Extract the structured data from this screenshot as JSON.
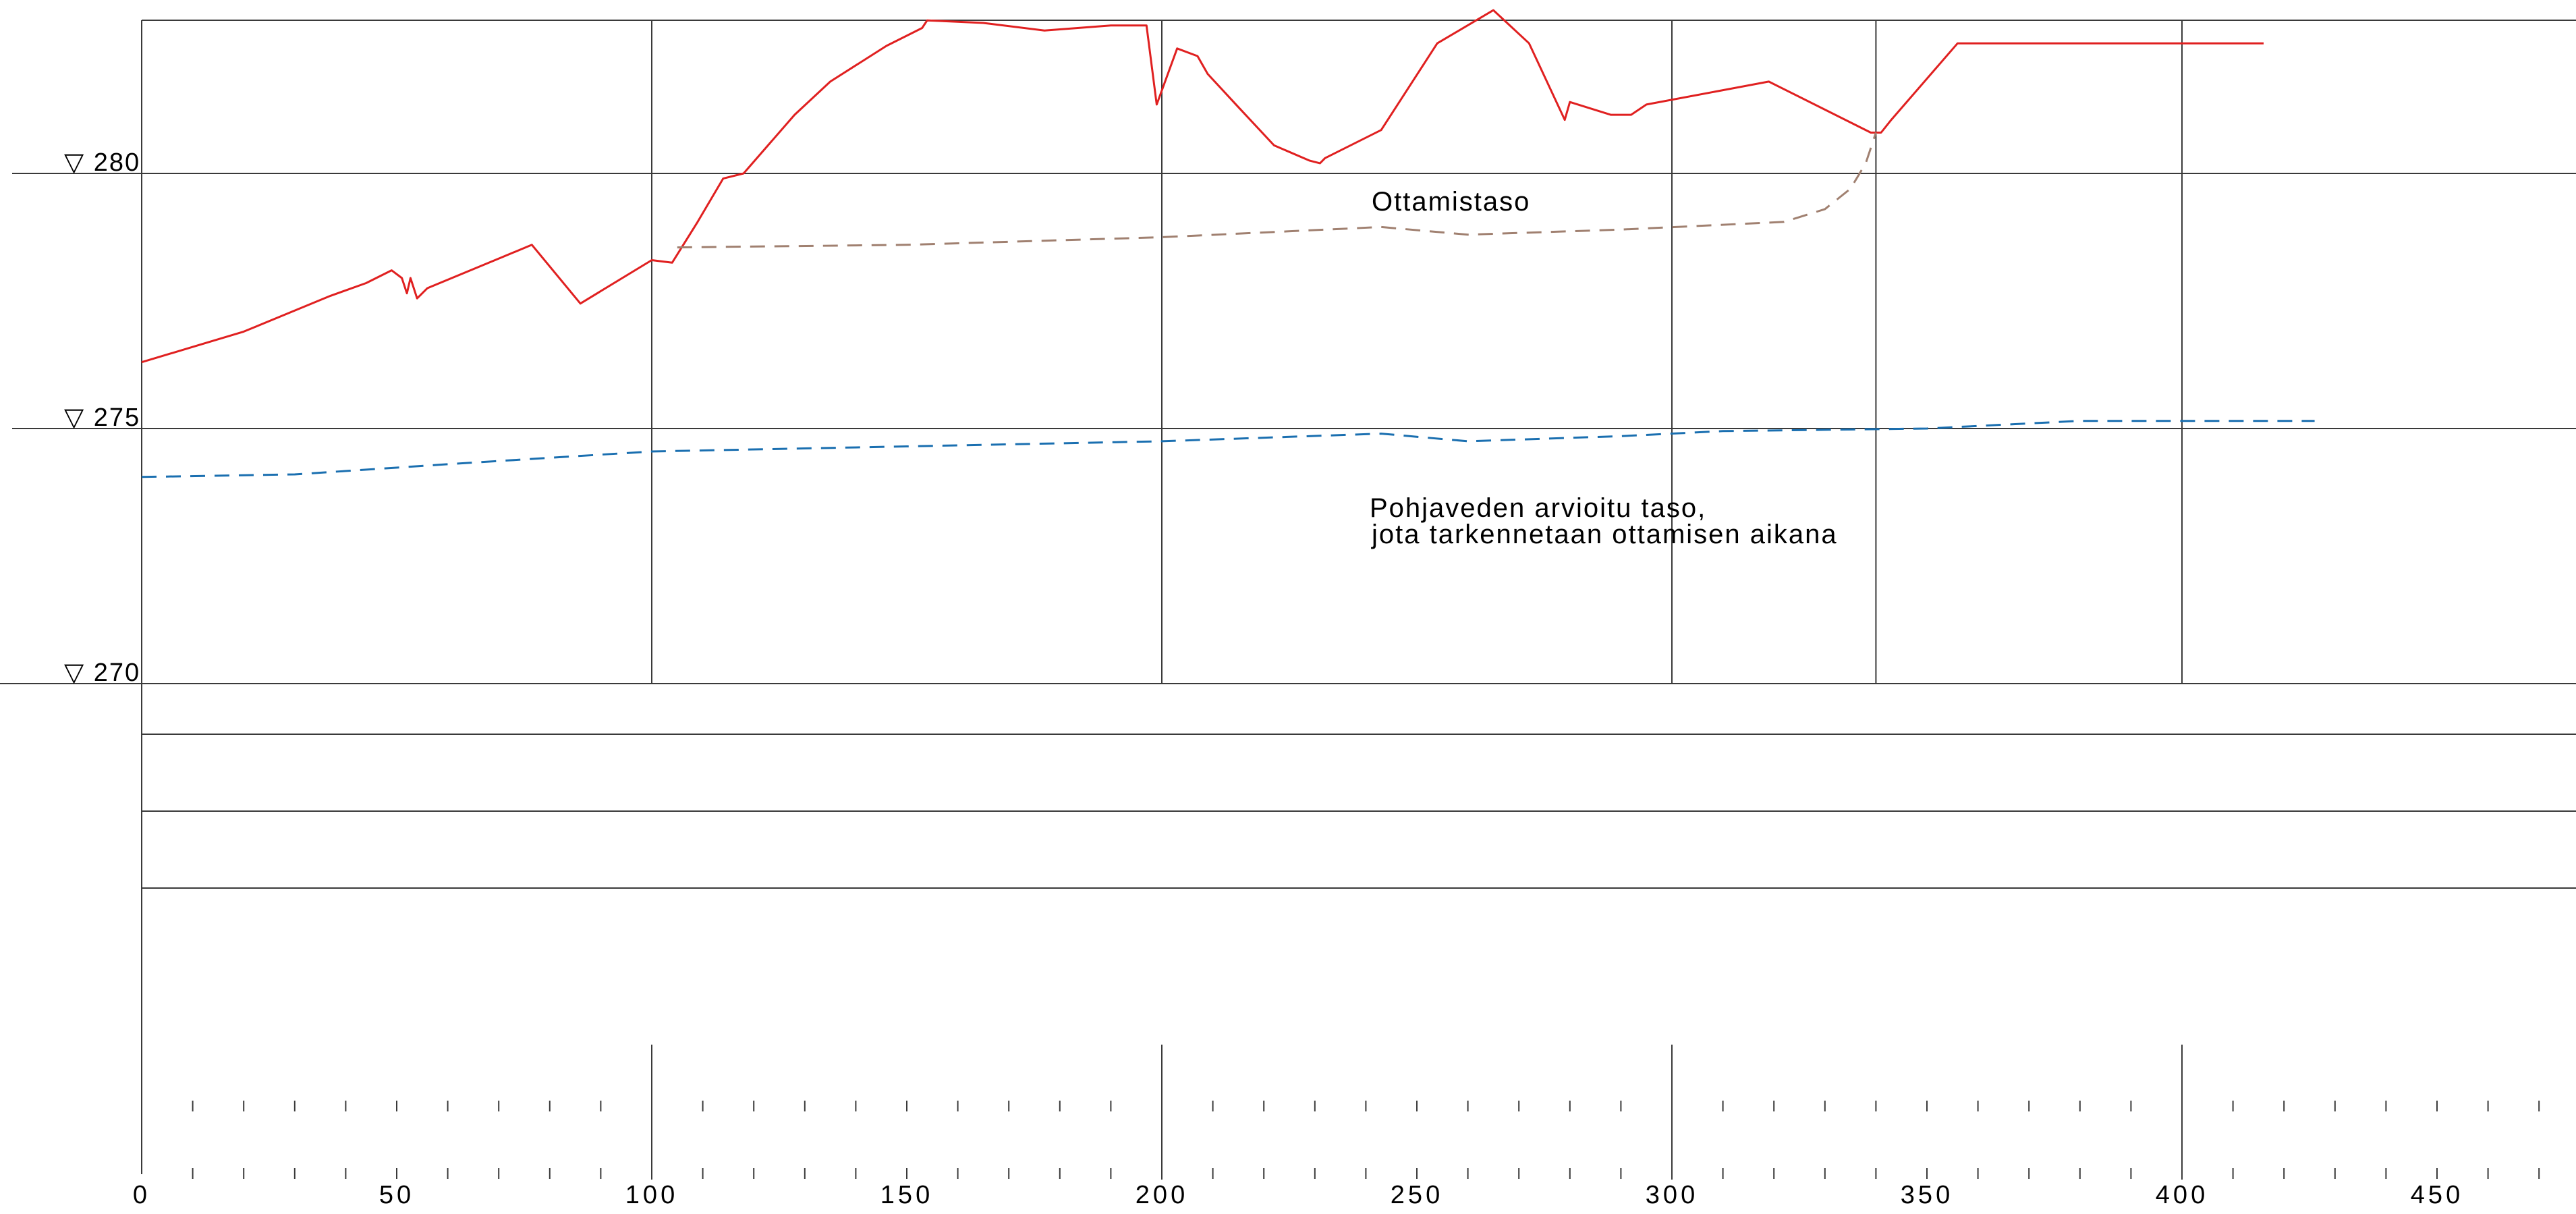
{
  "chart_data": {
    "type": "line",
    "title": "",
    "xlabel": "",
    "ylabel": "",
    "xlim": [
      0,
      475
    ],
    "ylim": [
      270,
      283
    ],
    "x_ticks": [
      "0",
      "50",
      "100",
      "150",
      "200",
      "250",
      "300",
      "350",
      "400",
      "450"
    ],
    "x_tick_values": [
      0,
      50,
      100,
      150,
      200,
      250,
      300,
      350,
      400,
      450
    ],
    "elevation_marks": [
      {
        "value": 280,
        "label": "▽ 280"
      },
      {
        "value": 275,
        "label": "▽ 275"
      },
      {
        "value": 270,
        "label": "▽ 270"
      }
    ],
    "vertical_gridlines_x": [
      100,
      200,
      300,
      340,
      400
    ],
    "series": [
      {
        "name": "",
        "color": "#e02020",
        "style": "solid",
        "points": [
          [
            0,
            276.3
          ],
          [
            20,
            276.9
          ],
          [
            37,
            277.6
          ],
          [
            44,
            277.85
          ],
          [
            49,
            278.1
          ],
          [
            51,
            277.95
          ],
          [
            52,
            277.65
          ],
          [
            52.7,
            277.95
          ],
          [
            54,
            277.55
          ],
          [
            56,
            277.75
          ],
          [
            76.5,
            278.6
          ],
          [
            86,
            277.45
          ],
          [
            100,
            278.3
          ],
          [
            104,
            278.25
          ],
          [
            109,
            279.05
          ],
          [
            114,
            279.9
          ],
          [
            118,
            280.0
          ],
          [
            128,
            281.15
          ],
          [
            135,
            281.8
          ],
          [
            146,
            282.5
          ],
          [
            153,
            282.85
          ],
          [
            154,
            283.0
          ],
          [
            165,
            282.95
          ],
          [
            177,
            282.8
          ],
          [
            190,
            282.9
          ],
          [
            197,
            282.9
          ],
          [
            199,
            281.35
          ],
          [
            203,
            282.45
          ],
          [
            207,
            282.3
          ],
          [
            209,
            281.95
          ],
          [
            215,
            281.3
          ],
          [
            222,
            280.55
          ],
          [
            229,
            280.25
          ],
          [
            231,
            280.2
          ],
          [
            232,
            280.3
          ],
          [
            243,
            280.85
          ],
          [
            254,
            282.55
          ],
          [
            265,
            283.2
          ],
          [
            272,
            282.55
          ],
          [
            279,
            281.05
          ],
          [
            280,
            281.4
          ],
          [
            288,
            281.15
          ],
          [
            292,
            281.15
          ],
          [
            295,
            281.35
          ],
          [
            319,
            281.8
          ],
          [
            339,
            280.8
          ],
          [
            341,
            280.8
          ],
          [
            343,
            281.05
          ],
          [
            356,
            282.55
          ],
          [
            416,
            282.55
          ]
        ]
      },
      {
        "name": "Ottamistaso",
        "color": "#a08070",
        "style": "dashed",
        "points": [
          [
            105,
            278.55
          ],
          [
            150,
            278.6
          ],
          [
            200,
            278.75
          ],
          [
            243,
            278.95
          ],
          [
            260,
            278.8
          ],
          [
            290,
            278.9
          ],
          [
            322,
            279.05
          ],
          [
            330,
            279.3
          ],
          [
            335,
            279.7
          ],
          [
            338,
            280.2
          ],
          [
            340,
            280.8
          ]
        ]
      },
      {
        "name": "Pohjaveden arvioitu taso,",
        "name_line2": "jota tarkennetaan ottamisen aikana",
        "color": "#1a6fb0",
        "style": "dashed",
        "points": [
          [
            0,
            274.05
          ],
          [
            30,
            274.1
          ],
          [
            60,
            274.3
          ],
          [
            100,
            274.55
          ],
          [
            150,
            274.65
          ],
          [
            200,
            274.75
          ],
          [
            243,
            274.9
          ],
          [
            260,
            274.75
          ],
          [
            290,
            274.85
          ],
          [
            310,
            274.95
          ],
          [
            350,
            275.0
          ],
          [
            380,
            275.15
          ],
          [
            426,
            275.15
          ]
        ]
      }
    ]
  }
}
